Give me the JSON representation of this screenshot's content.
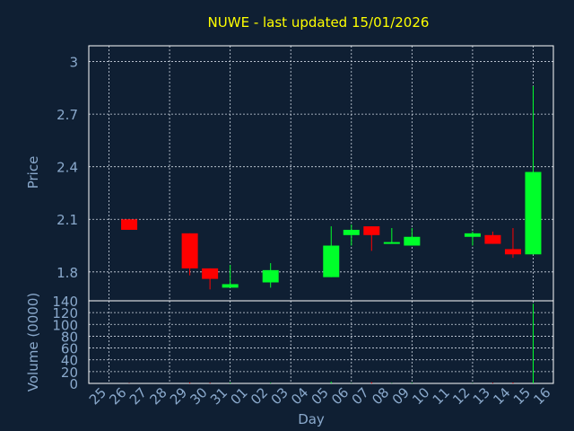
{
  "colors": {
    "background": "#0f1f33",
    "title": "#ffff00",
    "axis_text": "#8aa9cc",
    "up": "#00ff2a",
    "down": "#ff0000",
    "grid": "#cfd8e3"
  },
  "chart_data": {
    "type": "candlestick",
    "title": "NUWE - last updated 15/01/2026",
    "xlabel": "Day",
    "price_panel": {
      "ylabel": "Price",
      "ylim": [
        1.635,
        3.09
      ],
      "yticks": [
        1.8,
        2.1,
        2.4,
        2.7,
        3
      ],
      "ytick_labels": [
        "1.8",
        "2.1",
        "2.4",
        "2.7",
        "3"
      ]
    },
    "volume_panel": {
      "ylabel": "Volume (0000)",
      "ylim": [
        0,
        140
      ],
      "yticks": [
        0,
        20,
        40,
        60,
        80,
        100,
        120,
        140
      ],
      "ytick_labels": [
        "0",
        "20",
        "40",
        "60",
        "80",
        "100",
        "120",
        "140"
      ]
    },
    "x_tick_labels": [
      "25",
      "26",
      "27",
      "28",
      "29",
      "30",
      "31",
      "01",
      "02",
      "03",
      "04",
      "05",
      "06",
      "07",
      "08",
      "09",
      "10",
      "11",
      "12",
      "13",
      "14",
      "15",
      "16"
    ],
    "grid": true,
    "candles": [
      {
        "day": "26",
        "open": 2.1,
        "high": 2.1,
        "low": 2.04,
        "close": 2.04,
        "volume": 0.5
      },
      {
        "day": "29",
        "open": 2.02,
        "high": 2.02,
        "low": 1.78,
        "close": 1.82,
        "volume": 1.5
      },
      {
        "day": "30",
        "open": 1.82,
        "high": 1.82,
        "low": 1.7,
        "close": 1.76,
        "volume": 1.0
      },
      {
        "day": "31",
        "open": 1.71,
        "high": 1.84,
        "low": 1.71,
        "close": 1.73,
        "volume": 1.5
      },
      {
        "day": "02",
        "open": 1.74,
        "high": 1.85,
        "low": 1.71,
        "close": 1.81,
        "volume": 1.0
      },
      {
        "day": "05",
        "open": 1.77,
        "high": 2.06,
        "low": 1.77,
        "close": 1.95,
        "volume": 3.0
      },
      {
        "day": "06",
        "open": 2.01,
        "high": 2.07,
        "low": 1.95,
        "close": 2.04,
        "volume": 0.5
      },
      {
        "day": "07",
        "open": 2.06,
        "high": 2.06,
        "low": 1.92,
        "close": 2.01,
        "volume": 2.0
      },
      {
        "day": "08",
        "open": 1.96,
        "high": 2.05,
        "low": 1.96,
        "close": 1.97,
        "volume": 0.5
      },
      {
        "day": "09",
        "open": 1.95,
        "high": 2.05,
        "low": 1.95,
        "close": 2.0,
        "volume": 1.0
      },
      {
        "day": "12",
        "open": 2.0,
        "high": 2.03,
        "low": 1.95,
        "close": 2.02,
        "volume": 0.5
      },
      {
        "day": "13",
        "open": 2.01,
        "high": 2.03,
        "low": 1.96,
        "close": 1.96,
        "volume": 1.0
      },
      {
        "day": "14",
        "open": 1.93,
        "high": 2.05,
        "low": 1.88,
        "close": 1.9,
        "volume": 1.5
      },
      {
        "day": "15",
        "open": 1.9,
        "high": 2.86,
        "low": 1.9,
        "close": 2.37,
        "volume": 135
      }
    ]
  }
}
